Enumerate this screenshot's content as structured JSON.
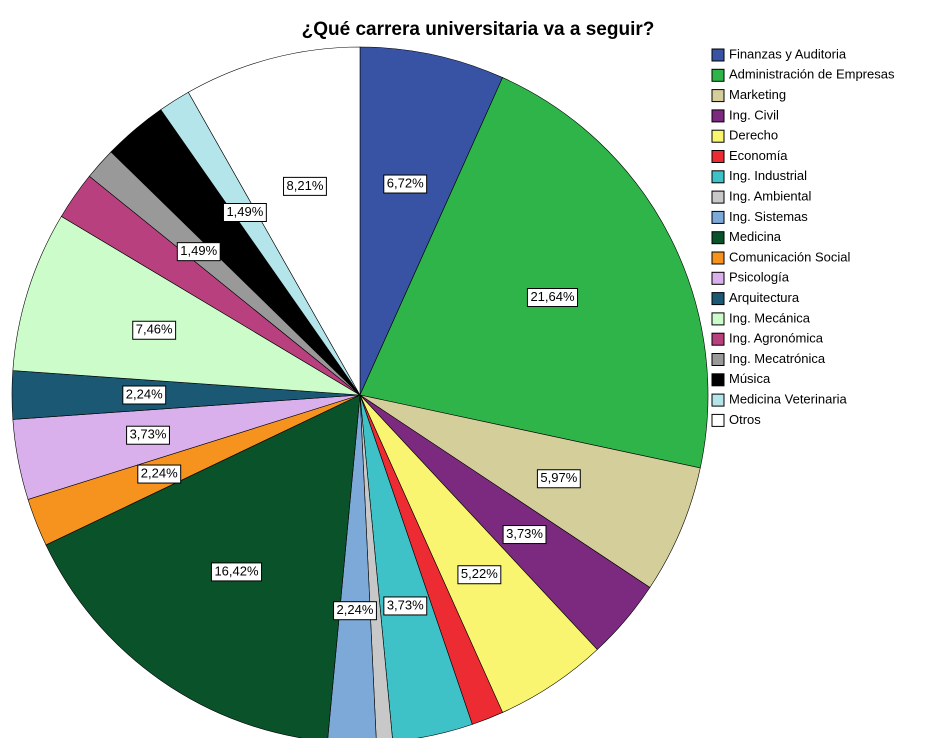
{
  "chart_data": {
    "type": "pie",
    "title": "¿Qué carrera universitaria va a seguir?",
    "categories": [
      "Finanzas y Auditoria",
      "Administración de Empresas",
      "Marketing",
      "Ing. Civil",
      "Derecho",
      "Economía",
      "Ing. Industrial",
      "Ing. Ambiental",
      "Ing. Sistemas",
      "Medicina",
      "Comunicación Social",
      "Psicología",
      "Arquitectura",
      "Ing. Mecánica",
      "Ing. Agronómica",
      "Ing. Mecatrónica",
      "Música",
      "Medicina Veterinaria",
      "Otros"
    ],
    "values": [
      6.72,
      21.64,
      5.97,
      3.73,
      5.22,
      1.49,
      3.73,
      0.75,
      2.24,
      16.42,
      2.24,
      3.73,
      2.24,
      7.46,
      2.24,
      1.49,
      2.99,
      1.49,
      8.21
    ],
    "value_labels": [
      "6,72%",
      "21,64%",
      "5,97%",
      "3,73%",
      "5,22%",
      null,
      "3,73%",
      null,
      "2,24%",
      "16,42%",
      "2,24%",
      "3,73%",
      "2,24%",
      "7,46%",
      null,
      "1,49%",
      null,
      "1,49%",
      "8,21%"
    ],
    "colors": [
      "#3953a4",
      "#2fb44a",
      "#d3ce9a",
      "#7b2a7f",
      "#f9f570",
      "#ec2b33",
      "#3ec1c7",
      "#c8c8c8",
      "#7ca9d8",
      "#0a5229",
      "#f5931e",
      "#dab0ec",
      "#1b5873",
      "#cbfcca",
      "#b8407f",
      "#999999",
      "#000000",
      "#b4e5ea",
      "#ffffff"
    ],
    "legend": "right"
  }
}
